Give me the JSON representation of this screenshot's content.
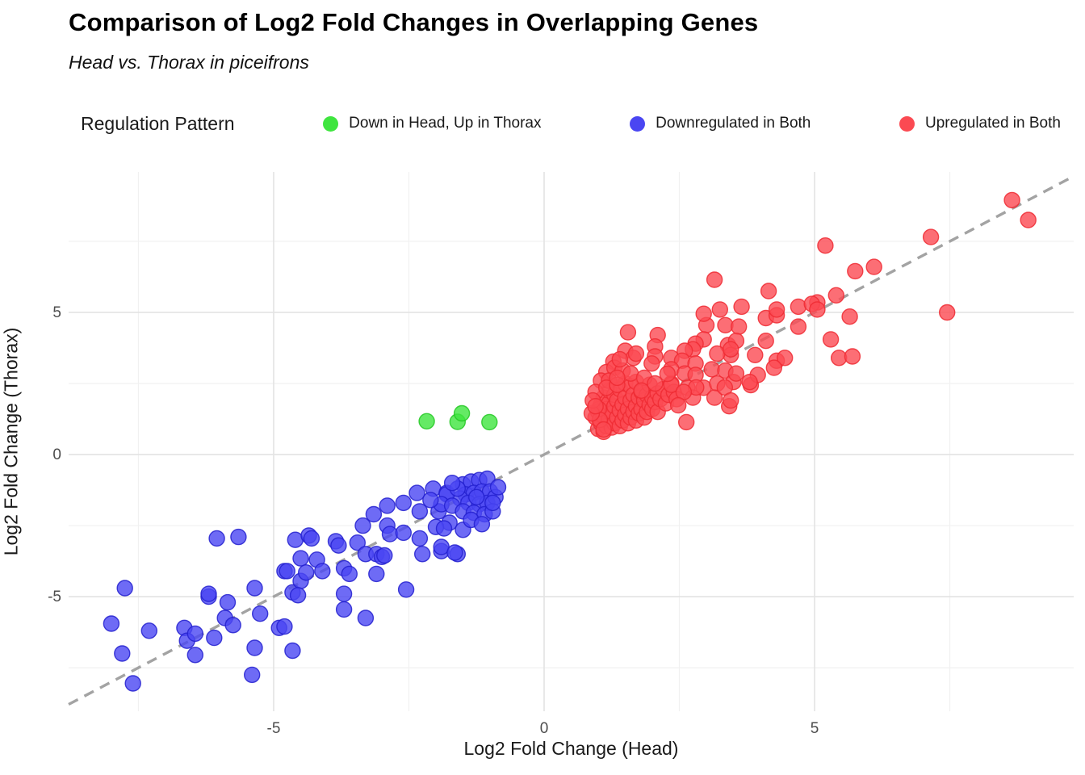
{
  "header": {
    "title": "Comparison of Log2 Fold Changes in Overlapping Genes",
    "subtitle": "Head vs. Thorax in piceifrons"
  },
  "legend": {
    "title": "Regulation Pattern",
    "items": [
      {
        "label": "Down in Head, Up in Thorax",
        "color": "#3fe53f"
      },
      {
        "label": "Downregulated in Both",
        "color": "#4a46f2"
      },
      {
        "label": "Upregulated in Both",
        "color": "#fb4a52"
      }
    ]
  },
  "chart_data": {
    "type": "scatter",
    "title": "Comparison of Log2 Fold Changes in Overlapping Genes",
    "subtitle": "Head vs. Thorax in piceifrons",
    "xlabel": "Log2 Fold Change (Head)",
    "ylabel": "Log2 Fold Change (Thorax)",
    "xlim": [
      -8.79,
      9.79
    ],
    "ylim": [
      -9.03,
      9.94
    ],
    "x_major_ticks": [
      -5,
      0,
      5
    ],
    "y_major_ticks": [
      -5,
      0,
      5
    ],
    "x_minor_ticks": [
      -7.5,
      -2.5,
      2.5,
      7.5
    ],
    "y_minor_ticks": [
      -7.5,
      -2.5,
      2.5,
      7.5
    ],
    "grid": true,
    "legend_position": "top",
    "colors": {
      "major_grid": "#e3e3e3",
      "minor_grid": "#f1f1f1",
      "tick_text": "#4d4d4d"
    },
    "identity_line": {
      "style": "dashed",
      "color": "#a3a3a3",
      "from": [
        -8.79,
        -8.79
      ],
      "to": [
        9.79,
        9.79
      ]
    },
    "series": [
      {
        "name": "Down in Head, Up in Thorax",
        "fill": "#3fe53f",
        "stroke": "#25c825",
        "points": [
          [
            -2.17,
            1.17
          ],
          [
            -1.6,
            1.15
          ],
          [
            -1.52,
            1.45
          ],
          [
            -1.01,
            1.14
          ]
        ]
      },
      {
        "name": "Downregulated in Both",
        "fill": "#4a46f2",
        "stroke": "#2320cf",
        "points": [
          [
            -8.0,
            -5.95
          ],
          [
            -7.75,
            -4.7
          ],
          [
            -7.8,
            -7.0
          ],
          [
            -7.6,
            -8.05
          ],
          [
            -7.3,
            -6.2
          ],
          [
            -6.65,
            -6.1
          ],
          [
            -6.6,
            -6.55
          ],
          [
            -6.45,
            -6.3
          ],
          [
            -6.45,
            -7.05
          ],
          [
            -6.2,
            -5.0
          ],
          [
            -6.2,
            -4.9
          ],
          [
            -6.1,
            -6.45
          ],
          [
            -6.05,
            -2.95
          ],
          [
            -5.9,
            -5.75
          ],
          [
            -5.85,
            -5.2
          ],
          [
            -5.75,
            -6.0
          ],
          [
            -5.65,
            -2.9
          ],
          [
            -5.35,
            -4.7
          ],
          [
            -5.25,
            -5.6
          ],
          [
            -5.35,
            -6.8
          ],
          [
            -5.4,
            -7.75
          ],
          [
            -4.9,
            -6.1
          ],
          [
            -4.8,
            -4.1
          ],
          [
            -4.8,
            -6.05
          ],
          [
            -4.65,
            -6.9
          ],
          [
            -4.65,
            -4.85
          ],
          [
            -4.75,
            -4.1
          ],
          [
            -4.6,
            -3.0
          ],
          [
            -4.5,
            -3.65
          ],
          [
            -4.5,
            -4.45
          ],
          [
            -4.55,
            -4.95
          ],
          [
            -4.35,
            -2.85
          ],
          [
            -4.4,
            -4.15
          ],
          [
            -4.3,
            -2.95
          ],
          [
            -4.2,
            -3.7
          ],
          [
            -4.1,
            -4.1
          ],
          [
            -3.85,
            -3.05
          ],
          [
            -3.8,
            -3.2
          ],
          [
            -3.7,
            -4.0
          ],
          [
            -3.7,
            -4.9
          ],
          [
            -3.7,
            -5.45
          ],
          [
            -3.6,
            -4.2
          ],
          [
            -3.45,
            -3.1
          ],
          [
            -3.35,
            -2.5
          ],
          [
            -3.3,
            -3.5
          ],
          [
            -3.3,
            -5.75
          ],
          [
            -3.15,
            -2.1
          ],
          [
            -3.1,
            -3.5
          ],
          [
            -3.0,
            -3.6
          ],
          [
            -3.1,
            -4.2
          ],
          [
            -2.9,
            -1.8
          ],
          [
            -2.9,
            -2.5
          ],
          [
            -2.85,
            -2.8
          ],
          [
            -2.95,
            -3.55
          ],
          [
            -2.6,
            -1.7
          ],
          [
            -2.6,
            -2.75
          ],
          [
            -2.55,
            -4.75
          ],
          [
            -2.35,
            -1.35
          ],
          [
            -2.3,
            -2.0
          ],
          [
            -2.3,
            -2.95
          ],
          [
            -2.25,
            -3.5
          ],
          [
            -2.05,
            -1.2
          ],
          [
            -1.95,
            -2.0
          ],
          [
            -1.9,
            -3.4
          ],
          [
            -1.8,
            -1.35
          ],
          [
            -1.75,
            -2.4
          ],
          [
            -1.6,
            -3.5
          ],
          [
            -1.5,
            -1.05
          ],
          [
            -1.35,
            -0.95
          ],
          [
            -1.2,
            -0.9
          ],
          [
            -1.05,
            -0.85
          ],
          [
            -1.45,
            -1.4
          ],
          [
            -1.3,
            -1.35
          ],
          [
            -1.15,
            -1.3
          ],
          [
            -1.0,
            -1.3
          ],
          [
            -1.55,
            -1.55
          ],
          [
            -1.4,
            -1.7
          ],
          [
            -1.2,
            -1.75
          ],
          [
            -1.05,
            -1.7
          ],
          [
            -0.9,
            -1.5
          ],
          [
            -1.8,
            -1.4
          ],
          [
            -1.9,
            -1.75
          ],
          [
            -1.7,
            -1.8
          ],
          [
            -1.5,
            -2.0
          ],
          [
            -1.3,
            -2.05
          ],
          [
            -1.1,
            -2.1
          ],
          [
            -0.95,
            -2.0
          ],
          [
            -2.0,
            -2.55
          ],
          [
            -1.85,
            -2.6
          ],
          [
            -1.5,
            -2.65
          ],
          [
            -1.9,
            -3.25
          ],
          [
            -1.65,
            -3.45
          ],
          [
            -0.85,
            -1.15
          ],
          [
            -1.6,
            -1.2
          ],
          [
            -1.25,
            -1.5
          ],
          [
            -0.95,
            -1.7
          ],
          [
            -1.7,
            -1.0
          ],
          [
            -2.1,
            -1.6
          ],
          [
            -1.35,
            -2.3
          ],
          [
            -1.15,
            -2.45
          ]
        ]
      },
      {
        "name": "Upregulated in Both",
        "fill": "#fb4a52",
        "stroke": "#ef2a33",
        "points": [
          [
            0.95,
            1.3
          ],
          [
            1.0,
            0.9
          ],
          [
            1.0,
            1.5
          ],
          [
            1.05,
            1.1
          ],
          [
            1.05,
            1.75
          ],
          [
            1.1,
            0.8
          ],
          [
            1.1,
            1.35
          ],
          [
            1.1,
            2.0
          ],
          [
            1.15,
            1.6
          ],
          [
            1.15,
            1.0
          ],
          [
            1.2,
            1.25
          ],
          [
            1.2,
            1.8
          ],
          [
            1.2,
            2.25
          ],
          [
            1.25,
            0.95
          ],
          [
            1.25,
            1.45
          ],
          [
            1.3,
            1.1
          ],
          [
            1.3,
            1.7
          ],
          [
            1.3,
            2.1
          ],
          [
            1.35,
            1.3
          ],
          [
            1.35,
            1.9
          ],
          [
            1.4,
            1.0
          ],
          [
            1.4,
            1.55
          ],
          [
            1.4,
            2.3
          ],
          [
            1.45,
            1.2
          ],
          [
            1.45,
            1.75
          ],
          [
            1.5,
            1.4
          ],
          [
            1.5,
            2.0
          ],
          [
            1.5,
            2.5
          ],
          [
            1.55,
            1.1
          ],
          [
            1.55,
            1.6
          ],
          [
            1.6,
            1.3
          ],
          [
            1.6,
            1.9
          ],
          [
            1.6,
            2.4
          ],
          [
            1.65,
            1.5
          ],
          [
            1.65,
            2.1
          ],
          [
            1.7,
            1.2
          ],
          [
            1.7,
            1.7
          ],
          [
            1.7,
            2.55
          ],
          [
            1.75,
            1.45
          ],
          [
            1.75,
            2.0
          ],
          [
            1.8,
            1.6
          ],
          [
            1.8,
            2.2
          ],
          [
            1.85,
            1.3
          ],
          [
            1.85,
            1.9
          ],
          [
            1.9,
            1.5
          ],
          [
            1.9,
            2.1
          ],
          [
            1.95,
            1.75
          ],
          [
            1.95,
            2.45
          ],
          [
            2.0,
            1.6
          ],
          [
            2.0,
            2.0
          ],
          [
            2.05,
            1.85
          ],
          [
            2.1,
            2.15
          ],
          [
            2.1,
            1.5
          ],
          [
            2.15,
            1.95
          ],
          [
            2.2,
            2.3
          ],
          [
            2.25,
            1.8
          ],
          [
            2.3,
            2.1
          ],
          [
            2.35,
            2.5
          ],
          [
            2.4,
            2.2
          ],
          [
            2.45,
            1.95
          ],
          [
            1.01,
            1.6
          ],
          [
            1.03,
            1.22
          ],
          [
            1.1,
            0.88
          ],
          [
            1.28,
            3.27
          ],
          [
            0.88,
            1.45
          ],
          [
            1.15,
            2.9
          ],
          [
            1.3,
            3.05
          ],
          [
            1.05,
            2.6
          ],
          [
            0.95,
            2.2
          ],
          [
            0.9,
            1.9
          ],
          [
            1.2,
            2.6
          ],
          [
            1.45,
            2.95
          ],
          [
            1.15,
            2.35
          ],
          [
            0.95,
            1.7
          ],
          [
            1.35,
            2.45
          ],
          [
            1.55,
            4.3
          ],
          [
            2.1,
            4.2
          ],
          [
            2.05,
            3.8
          ],
          [
            1.5,
            3.65
          ],
          [
            1.65,
            3.4
          ],
          [
            1.4,
            3.35
          ],
          [
            2.05,
            3.45
          ],
          [
            3.0,
            4.55
          ],
          [
            3.35,
            4.55
          ],
          [
            2.95,
            4.05
          ],
          [
            2.8,
            3.9
          ],
          [
            3.4,
            3.85
          ],
          [
            3.45,
            3.5
          ],
          [
            3.2,
            3.55
          ],
          [
            2.75,
            3.7
          ],
          [
            2.6,
            3.65
          ],
          [
            2.35,
            3.4
          ],
          [
            2.55,
            3.3
          ],
          [
            2.8,
            3.2
          ],
          [
            2.35,
            3.0
          ],
          [
            2.6,
            2.85
          ],
          [
            2.8,
            2.8
          ],
          [
            3.1,
            3.0
          ],
          [
            3.35,
            2.95
          ],
          [
            1.6,
            2.85
          ],
          [
            1.85,
            2.7
          ],
          [
            1.35,
            2.7
          ],
          [
            2.05,
            2.5
          ],
          [
            2.35,
            2.45
          ],
          [
            2.65,
            2.35
          ],
          [
            2.95,
            2.35
          ],
          [
            3.2,
            2.5
          ],
          [
            3.5,
            2.55
          ],
          [
            1.8,
            2.25
          ],
          [
            1.7,
            3.55
          ],
          [
            1.99,
            3.2
          ],
          [
            2.28,
            2.84
          ],
          [
            2.63,
            1.14
          ],
          [
            3.42,
            1.7
          ],
          [
            3.15,
            2.0
          ],
          [
            3.34,
            2.36
          ],
          [
            3.82,
            2.44
          ],
          [
            2.75,
            2.0
          ],
          [
            2.81,
            2.36
          ],
          [
            2.58,
            2.2
          ],
          [
            2.48,
            1.73
          ],
          [
            4.1,
            4.8
          ],
          [
            4.3,
            4.9
          ],
          [
            4.7,
            4.5
          ],
          [
            3.6,
            4.5
          ],
          [
            4.1,
            4.0
          ],
          [
            3.55,
            4.0
          ],
          [
            3.45,
            3.7
          ],
          [
            3.9,
            3.5
          ],
          [
            4.3,
            3.3
          ],
          [
            4.45,
            3.4
          ],
          [
            4.25,
            3.05
          ],
          [
            3.95,
            2.8
          ],
          [
            3.8,
            2.55
          ],
          [
            3.55,
            2.85
          ],
          [
            5.65,
            4.85
          ],
          [
            5.3,
            4.05
          ],
          [
            5.45,
            3.4
          ],
          [
            5.7,
            3.45
          ],
          [
            3.45,
            1.9
          ],
          [
            3.15,
            6.15
          ],
          [
            4.15,
            5.75
          ],
          [
            3.65,
            5.2
          ],
          [
            3.25,
            5.1
          ],
          [
            2.95,
            4.95
          ],
          [
            4.3,
            5.1
          ],
          [
            4.7,
            5.2
          ],
          [
            5.05,
            5.35
          ],
          [
            5.2,
            7.35
          ],
          [
            8.65,
            8.95
          ],
          [
            8.95,
            8.25
          ],
          [
            7.15,
            7.65
          ],
          [
            5.75,
            6.45
          ],
          [
            6.1,
            6.6
          ],
          [
            5.4,
            5.6
          ],
          [
            4.95,
            5.3
          ],
          [
            5.05,
            5.1
          ],
          [
            7.45,
            5.0
          ]
        ]
      }
    ]
  }
}
